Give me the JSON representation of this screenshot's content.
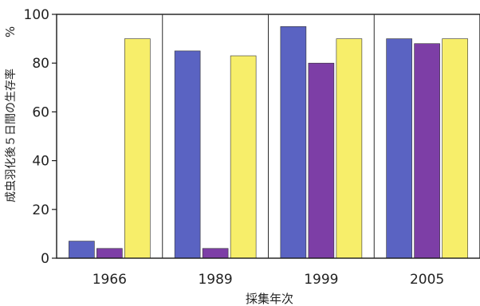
{
  "chart_data": {
    "type": "bar",
    "title": "",
    "xlabel": "採集年次",
    "ylabel": "成虫羽化後５日間の生存率",
    "y_unit": "%",
    "ylim": [
      0,
      100
    ],
    "yticks": [
      0,
      20,
      40,
      60,
      80,
      100
    ],
    "categories": [
      "1966",
      "1989",
      "1999",
      "2005"
    ],
    "series": [
      {
        "values": [
          7,
          85,
          95,
          90
        ],
        "color": "#5a63c2"
      },
      {
        "values": [
          4,
          4,
          80,
          88
        ],
        "color": "#7d3ea6"
      },
      {
        "values": [
          90,
          83,
          90,
          90
        ],
        "color": "#f7ee6a"
      }
    ],
    "grid": false,
    "legend": "none"
  }
}
